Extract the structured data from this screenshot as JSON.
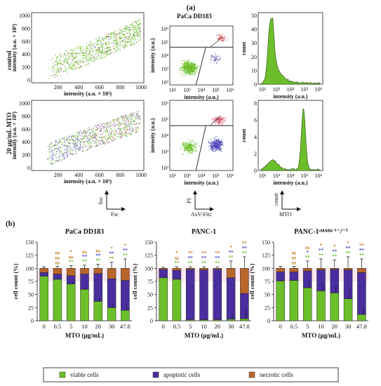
{
  "labels": {
    "panel_a": "(a)",
    "panel_b": "(b)",
    "top_title": "PaCa DD183",
    "row_control": "control",
    "row_mto": "20 μg/mL MTO",
    "ylab_scatter": "intensity (a.u. × 10³)",
    "xlab_scatter": "intensity (a.u. × 10³)",
    "ylab_flow": "intensity (a.u.)",
    "xlab_flow": "intensity (a.u.)",
    "ylab_hist": "count",
    "xlab_hist": "intensity (a.u.)",
    "key1_y": "Ssc",
    "key1_x": "Fsc",
    "key2_y": "PI",
    "key2_x": "AxV-Fitc",
    "key3_y": "count",
    "key3_x": "MTO"
  },
  "legend": [
    {
      "label": "viable cells",
      "color": "#6cbf2a"
    },
    {
      "label": "apoptotic cells",
      "color": "#4a2ea0"
    },
    {
      "label": "necrotic cells",
      "color": "#b8662a"
    }
  ],
  "colors": {
    "viable": "#6cbf2a",
    "apoptotic": "#4a2ea0",
    "necrotic": "#b8662a",
    "sig_ns": "#c8802a",
    "sig_star1": "#c8802a",
    "sig_star2": "#4a3cc0",
    "sig_star3": "#6cbf2a"
  },
  "chart_data": [
    {
      "type": "scatter",
      "panel": "a",
      "title": "",
      "rows": [
        "control",
        "20 μg/mL MTO"
      ],
      "xlabel": "intensity (a.u. × 10³)",
      "ylabel": "intensity (a.u. × 10³)",
      "xlim": [
        0,
        1000
      ],
      "ylim": [
        0,
        1000
      ],
      "xticks": [
        "0",
        "200",
        "400",
        "600",
        "800",
        "1000"
      ],
      "yticks": [
        "0",
        "200",
        "400",
        "600",
        "800",
        "1000"
      ]
    },
    {
      "type": "scatter",
      "panel": "a",
      "title": "PaCa DD183",
      "xlabel": "intensity (a.u.)",
      "ylabel": "intensity (a.u.)",
      "log": true,
      "xticks": [
        "10²",
        "10³",
        "10⁴",
        "10⁵",
        "10⁶"
      ],
      "yticks": [
        "10²",
        "10³",
        "10⁴",
        "10⁵",
        "10⁶"
      ]
    },
    {
      "type": "area",
      "panel": "a",
      "xlabel": "intensity (a.u.)",
      "ylabel": "count",
      "xticks": [
        "10²",
        "10³",
        "10⁴",
        "10⁵",
        "10⁶"
      ],
      "control_yticks": [
        "0",
        "10",
        "20",
        "30",
        "40",
        "50"
      ],
      "mto_yticks": [
        "0",
        "2",
        "4",
        "6",
        "8"
      ],
      "control_ylim": [
        0,
        50
      ],
      "mto_ylim": [
        0,
        8
      ]
    },
    {
      "type": "bar",
      "stacked": true,
      "title": "PaCa DD183",
      "xlabel": "MTO (μg/mL)",
      "ylabel": "cell count (%)",
      "ylim": [
        0,
        150
      ],
      "yticks": [
        "0",
        "25",
        "50",
        "75",
        "100",
        "125",
        "150"
      ],
      "categories": [
        "0",
        "0.5",
        "5",
        "10",
        "20",
        "30",
        "47.8"
      ],
      "series": [
        {
          "name": "viable cells",
          "values": [
            85,
            79,
            70,
            60,
            37,
            25,
            20
          ]
        },
        {
          "name": "apoptotic cells",
          "values": [
            7,
            10,
            16,
            29,
            53,
            55,
            57
          ]
        },
        {
          "name": "necrotic cells",
          "values": [
            8,
            11,
            14,
            11,
            10,
            20,
            23
          ]
        }
      ],
      "errors": [
        3,
        4,
        5,
        6,
        8,
        12,
        18
      ],
      "sig": [
        [
          "",
          "",
          ""
        ],
        [
          "ns",
          "ns",
          "ns"
        ],
        [
          "*",
          "ns",
          "**"
        ],
        [
          "ns",
          "**",
          "**"
        ],
        [
          "ns",
          "**",
          "**"
        ],
        [
          "*",
          "**",
          "**"
        ],
        [
          "*",
          "**",
          "**"
        ]
      ]
    },
    {
      "type": "bar",
      "stacked": true,
      "title": "PANC-1",
      "xlabel": "MTO (μg/mL)",
      "ylabel": "cell count (%)",
      "ylim": [
        0,
        150
      ],
      "yticks": [
        "0",
        "25",
        "50",
        "75",
        "100",
        "125",
        "150"
      ],
      "categories": [
        "0",
        "0.5",
        "5",
        "10",
        "20",
        "30",
        "47.8"
      ],
      "series": [
        {
          "name": "viable cells",
          "values": [
            82,
            79,
            2,
            2,
            2,
            3,
            4
          ]
        },
        {
          "name": "apoptotic cells",
          "values": [
            16,
            17,
            96,
            95,
            96,
            79,
            48
          ]
        },
        {
          "name": "necrotic cells",
          "values": [
            2,
            4,
            2,
            3,
            2,
            18,
            48
          ]
        }
      ],
      "errors": [
        2,
        3,
        3,
        3,
        3,
        14,
        22
      ],
      "sig": [
        [
          "",
          "",
          ""
        ],
        [
          "*",
          "ns",
          "**"
        ],
        [
          "**",
          "**",
          "**"
        ],
        [
          "**",
          "**",
          "**"
        ],
        [
          "**",
          "**",
          "**"
        ],
        [
          "*",
          "**",
          "**"
        ],
        [
          "**",
          "**",
          "**"
        ]
      ]
    },
    {
      "type": "bar",
      "stacked": true,
      "title": "PANC-1ˢᴹᴬᴰ⁴ ⁽⁻/⁻⁾",
      "xlabel": "MTO (μg/mL)",
      "ylabel": "cell count (%)",
      "ylim": [
        0,
        150
      ],
      "yticks": [
        "0",
        "25",
        "50",
        "75",
        "100",
        "125",
        "150"
      ],
      "categories": [
        "0",
        "0.5",
        "5",
        "10",
        "20",
        "30",
        "47.8"
      ],
      "series": [
        {
          "name": "viable cells",
          "values": [
            76,
            77,
            63,
            57,
            53,
            42,
            12
          ]
        },
        {
          "name": "apoptotic cells",
          "values": [
            17,
            16,
            32,
            40,
            45,
            55,
            80
          ]
        },
        {
          "name": "necrotic cells",
          "values": [
            7,
            7,
            5,
            3,
            2,
            3,
            8
          ]
        }
      ],
      "errors": [
        4,
        4,
        14,
        18,
        16,
        22,
        18
      ],
      "sig": [
        [
          "",
          "",
          ""
        ],
        [
          "ns",
          "ns",
          "ns"
        ],
        [
          "ns",
          "*",
          "**"
        ],
        [
          "*",
          "**",
          "**"
        ],
        [
          "*",
          "**",
          "**"
        ],
        [
          "*",
          "**",
          "**"
        ],
        [
          "**",
          "**",
          "**"
        ]
      ]
    }
  ]
}
